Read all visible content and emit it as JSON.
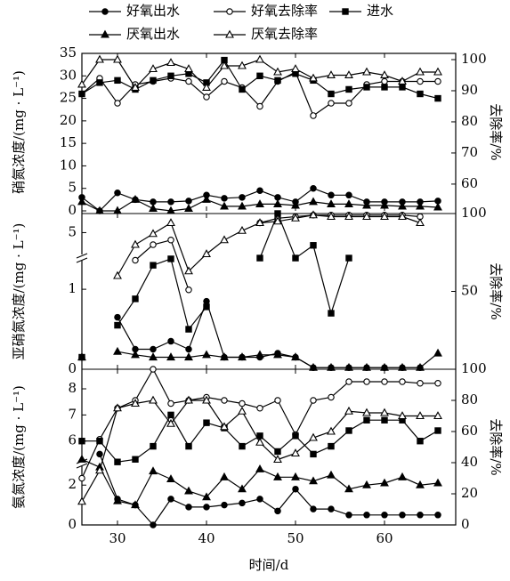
{
  "chart_data": [
    {
      "type": "line",
      "ylabel": "硝氮浓度/(mg · L⁻¹)",
      "y2label": "去除率/%",
      "x": [
        26,
        28,
        30,
        32,
        34,
        36,
        38,
        40,
        42,
        44,
        46,
        48,
        50,
        52,
        54,
        56,
        58,
        60,
        62,
        64,
        66
      ],
      "xlim": [
        26,
        68
      ],
      "xticks": [
        30,
        40,
        50,
        60
      ],
      "ylim": [
        0,
        35
      ],
      "yticks": [
        0,
        5,
        10,
        15,
        20,
        25,
        30,
        35
      ],
      "y2lim": [
        51.4,
        102
      ],
      "y2ticks": [
        60,
        70,
        80,
        90,
        100
      ],
      "series": [
        {
          "name": "好氧出水",
          "marker": "circle",
          "color": "#000000",
          "values": [
            3,
            0,
            4,
            2.5,
            2,
            2,
            2.2,
            3.5,
            2.8,
            3,
            4.5,
            3,
            2,
            5,
            3.5,
            3.5,
            2,
            2,
            2,
            2,
            2.2
          ]
        },
        {
          "name": "好氧去除率",
          "marker": "open-circle",
          "color": "#000000",
          "axis": "y2",
          "values": [
            89,
            94,
            86,
            92,
            93,
            94,
            93,
            88,
            93,
            91,
            85,
            93,
            96,
            82,
            86,
            86,
            92,
            93,
            93,
            93,
            93
          ]
        },
        {
          "name": "进水",
          "marker": "square",
          "color": "#000000",
          "values": [
            26,
            28.5,
            29,
            27,
            29,
            30,
            30.5,
            28.5,
            33.5,
            27,
            30,
            29,
            30.5,
            29,
            26,
            27,
            27.5,
            27.5,
            27.5,
            26,
            25
          ]
        },
        {
          "name": "厌氧出水",
          "marker": "triangle",
          "color": "#000000",
          "values": [
            2,
            0,
            0,
            2.5,
            0.5,
            0,
            0.5,
            2.5,
            1,
            1,
            1.5,
            1.5,
            1.2,
            2,
            1.5,
            1.5,
            1.2,
            1.2,
            1,
            1,
            0.8
          ]
        },
        {
          "name": "厌氧去除率",
          "marker": "open-triangle",
          "color": "#000000",
          "axis": "y2",
          "values": [
            92,
            100,
            100,
            91,
            97,
            99,
            97,
            91,
            98,
            98,
            100,
            96,
            97,
            94,
            95,
            95,
            96,
            95,
            93,
            96,
            96
          ]
        }
      ]
    },
    {
      "type": "line",
      "ylabel": "亚硝氮浓度/(mg · L⁻¹)",
      "y2label": "去除率/%",
      "x": [
        26,
        28,
        30,
        32,
        34,
        36,
        38,
        40,
        42,
        44,
        46,
        48,
        50,
        52,
        54,
        56,
        58,
        60,
        62,
        64,
        66
      ],
      "xlim": [
        26,
        68
      ],
      "xticks": [
        30,
        40,
        50,
        60
      ],
      "ylim": [
        0,
        5.3
      ],
      "ybreak": [
        1.39,
        4.6
      ],
      "yticks": [
        0,
        1,
        5
      ],
      "y2lim": [
        0,
        100
      ],
      "y2ticks": [
        50,
        100
      ],
      "series": [
        {
          "marker": "circle",
          "color": "#000000",
          "values": [
            0.15,
            null,
            0.65,
            0.25,
            0.25,
            0.35,
            0.25,
            0.85,
            0.15,
            0.15,
            0.15,
            0.2,
            0.15,
            0.02,
            0.02,
            0.02,
            0.02,
            0.02,
            0.02,
            0.02,
            null
          ]
        },
        {
          "marker": "open-circle",
          "color": "#000000",
          "axis": "y2",
          "values": [
            null,
            null,
            null,
            70,
            80,
            83,
            51,
            null,
            null,
            null,
            94,
            97,
            98,
            99,
            99,
            99,
            99,
            99,
            99,
            98,
            null
          ]
        },
        {
          "marker": "square",
          "color": "#000000",
          "values": [
            0.15,
            null,
            0.55,
            0.88,
            1.3,
            1.38,
            0.5,
            0.78,
            null,
            null,
            4.6,
            5.3,
            4.6,
            4.8,
            0.7,
            4.55,
            null,
            null,
            null,
            null,
            null
          ]
        },
        {
          "marker": "triangle",
          "color": "#000000",
          "values": [
            0.15,
            null,
            0.22,
            0.18,
            0.15,
            0.15,
            0.15,
            0.18,
            0.15,
            0.15,
            0.18,
            0.18,
            0.15,
            0.02,
            0.02,
            0.02,
            0.02,
            0.02,
            0.02,
            0.02,
            0.2
          ]
        },
        {
          "marker": "open-triangle",
          "color": "#000000",
          "axis": "y2",
          "values": [
            null,
            null,
            60,
            80,
            87,
            94,
            63,
            74,
            83,
            89,
            94,
            95,
            97,
            99,
            98,
            98,
            98,
            98,
            98,
            94,
            null
          ]
        }
      ]
    },
    {
      "type": "line",
      "ylabel": "氨氮浓度/(mg · L⁻¹)",
      "y2label": "去除率/%",
      "xlabel": "时间/d",
      "x": [
        26,
        28,
        30,
        32,
        34,
        36,
        38,
        40,
        42,
        44,
        46,
        48,
        50,
        52,
        54,
        56,
        58,
        60,
        62,
        64,
        66
      ],
      "xlim": [
        26,
        68
      ],
      "xticks": [
        30,
        40,
        50,
        60
      ],
      "ylim": [
        0,
        8.75
      ],
      "ybreak": [
        2.9,
        5
      ],
      "yticks": [
        0,
        2,
        6,
        7,
        8
      ],
      "y2lim": [
        0,
        100
      ],
      "y2ticks": [
        0,
        20,
        40,
        60,
        80,
        100
      ],
      "series": [
        {
          "marker": "circle",
          "color": "#000000",
          "values": [
            null,
            5.5,
            1.3,
            1.0,
            0,
            1.3,
            0.9,
            0.9,
            1.0,
            1.1,
            1.3,
            0.7,
            1.8,
            0.8,
            0.8,
            0.5,
            0.5,
            0.5,
            0.5,
            0.5,
            0.5
          ]
        },
        {
          "marker": "open-circle",
          "color": "#000000",
          "axis": "y2",
          "values": [
            30,
            55,
            75,
            80,
            100,
            78,
            80,
            82,
            80,
            78,
            75,
            80,
            58,
            80,
            82,
            92,
            92,
            92,
            92,
            91,
            91
          ]
        },
        {
          "marker": "square",
          "color": "#000000",
          "values": [
            6,
            6,
            5.2,
            5.3,
            5.8,
            7,
            5.8,
            6.7,
            6.5,
            5.8,
            6.2,
            5.6,
            6.2,
            5.5,
            5.8,
            6.4,
            6.8,
            6.8,
            6.8,
            6,
            6.4
          ]
        },
        {
          "marker": "triangle",
          "color": "#000000",
          "values": [
            5.3,
            5,
            1.2,
            1.0,
            2.7,
            2.3,
            1.7,
            1.4,
            2.4,
            1.8,
            2.8,
            2.4,
            2.4,
            2.2,
            2.5,
            1.8,
            2,
            2.1,
            2.4,
            2,
            2.1
          ]
        },
        {
          "marker": "open-triangle",
          "color": "#000000",
          "axis": "y2",
          "values": [
            15,
            35,
            75,
            78,
            80,
            65,
            80,
            80,
            63,
            73,
            53,
            42,
            46,
            56,
            60,
            73,
            72,
            72,
            70,
            70,
            70
          ]
        }
      ]
    }
  ]
}
